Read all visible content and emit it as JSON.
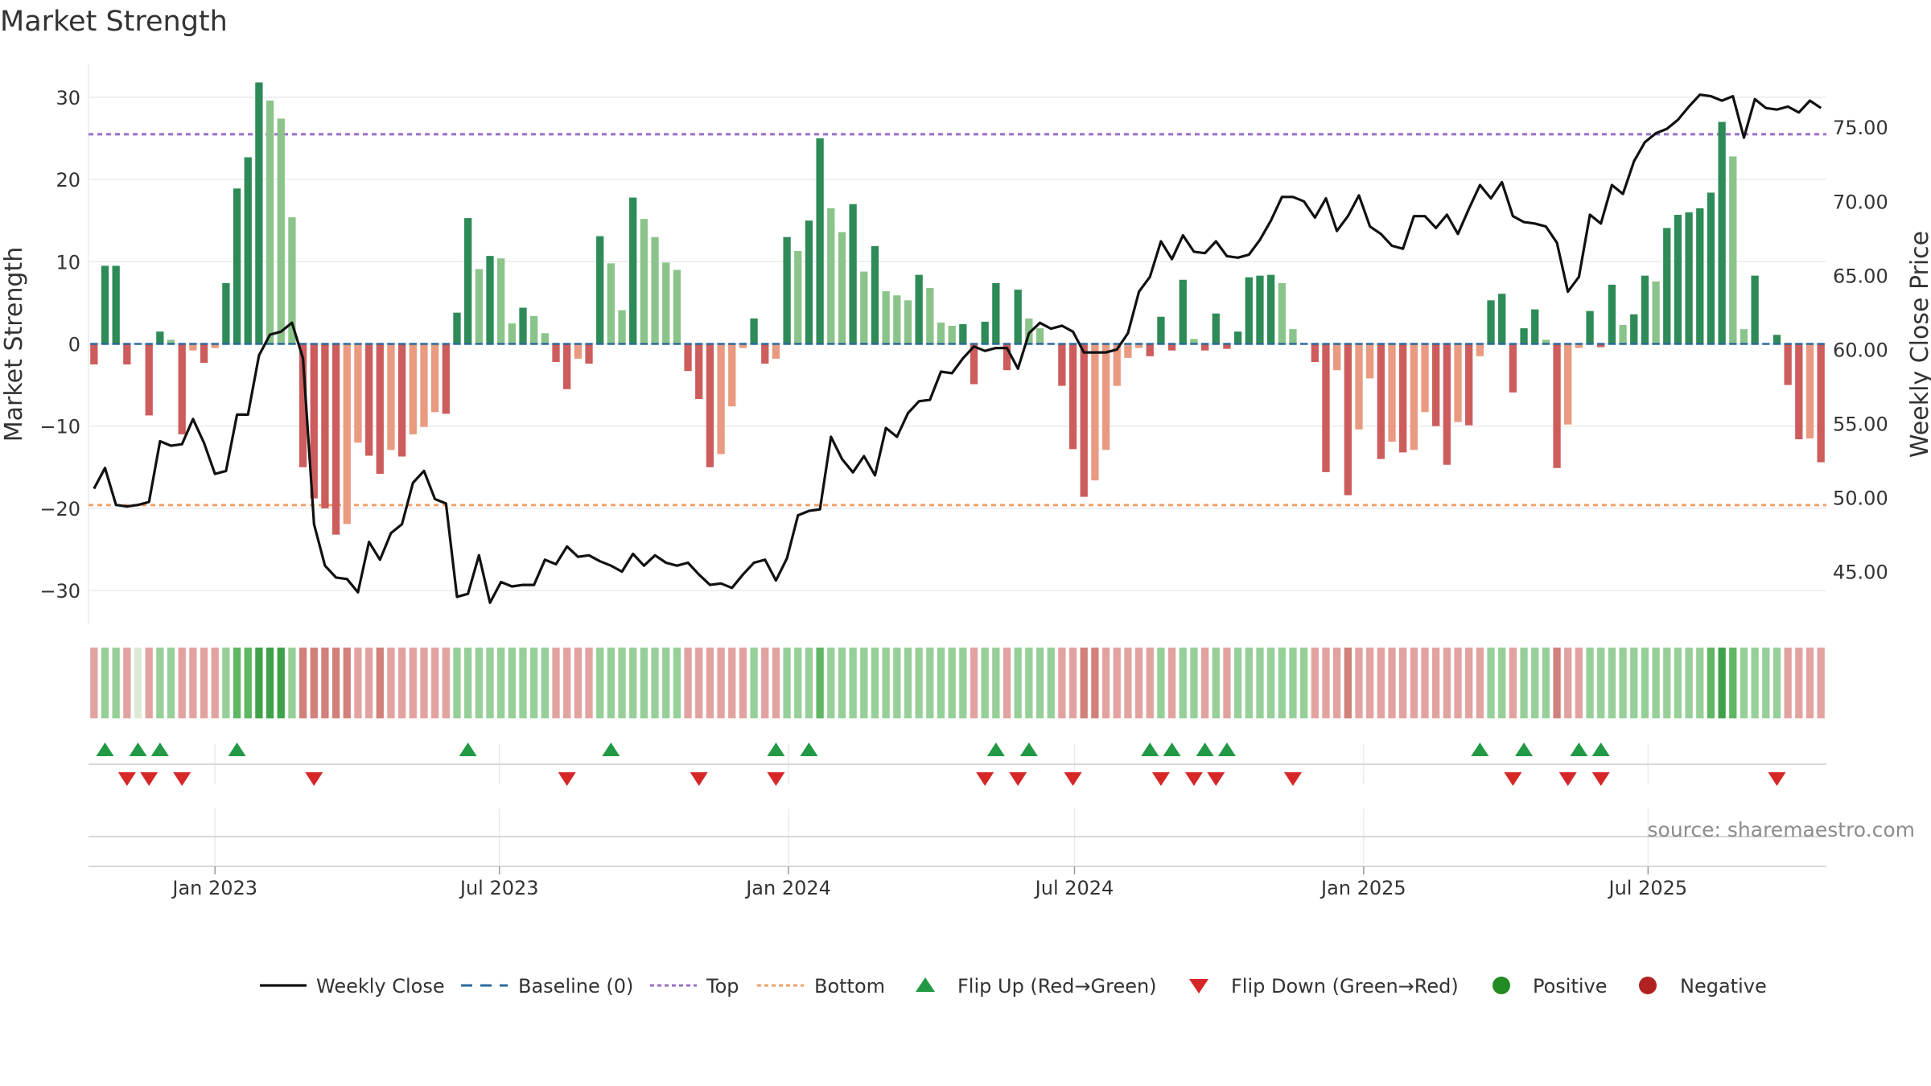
{
  "chart_data": {
    "type": "bar",
    "title": "Market Strength",
    "ylabel": "Market Strength",
    "y2label": "Weekly Close Price",
    "ylim": [
      -34,
      34
    ],
    "y2lim": [
      41.5,
      79.25
    ],
    "yticks": [
      30,
      20,
      10,
      0,
      -10,
      -20,
      -30
    ],
    "yticklabels": [
      "30",
      "20",
      "10",
      "0",
      "−10",
      "−20",
      "−30"
    ],
    "y2ticks": [
      75,
      70,
      65,
      60,
      55,
      50,
      45
    ],
    "y2ticklabels": [
      "75.00",
      "70.00",
      "65.00",
      "60.00",
      "55.00",
      "50.00",
      "45.00"
    ],
    "x_dates": [
      "2023-01-01",
      "2023-07-01",
      "2024-01-01",
      "2024-07-01",
      "2025-01-01",
      "2025-07-01"
    ],
    "x_ticklabels": [
      "Jan 2023",
      "Jul 2023",
      "Jan 2024",
      "Jul 2024",
      "Jan 2025",
      "Jul 2025"
    ],
    "start_date": "2022-10-16",
    "top_line": 25.5,
    "bottom_line": -19.6,
    "baseline": 0,
    "strength": [
      -2.5,
      9.5,
      9.5,
      -2.5,
      0,
      -8.7,
      1.5,
      0.5,
      -11,
      -0.8,
      -2.3,
      -0.5,
      7.4,
      18.9,
      22.7,
      31.8,
      29.6,
      27.4,
      15.4,
      -15,
      -18.8,
      -20,
      -23.2,
      -21.9,
      -12,
      -13.6,
      -15.8,
      -12.9,
      -13.7,
      -11,
      -10.1,
      -8.3,
      -8.5,
      3.8,
      15.3,
      9.1,
      10.7,
      10.4,
      2.5,
      4.4,
      3.4,
      1.3,
      -2.2,
      -5.5,
      -1.8,
      -2.4,
      13.1,
      9.8,
      4.1,
      17.8,
      15.2,
      13,
      9.9,
      9,
      -3.3,
      -6.7,
      -15,
      -13.4,
      -7.6,
      -0.5,
      3.1,
      -2.4,
      -1.8,
      13,
      11.3,
      15,
      25,
      16.5,
      13.6,
      17,
      8.8,
      11.9,
      6.4,
      5.9,
      5.3,
      8.4,
      6.8,
      2.6,
      2.2,
      2.4,
      -4.9,
      2.7,
      7.4,
      -3.2,
      6.6,
      3.1,
      1.9,
      0,
      -5.1,
      -12.8,
      -18.6,
      -16.6,
      -12.9,
      -5.1,
      -1.7,
      -0.5,
      -1.5,
      3.3,
      -0.8,
      7.8,
      0.6,
      -0.8,
      3.7,
      -0.6,
      1.5,
      8.1,
      8.3,
      8.4,
      7.4,
      1.8,
      0,
      -2.2,
      -15.6,
      -3.2,
      -18.4,
      -10.4,
      -4.2,
      -14,
      -11.9,
      -13.2,
      -12.9,
      -8.3,
      -10,
      -14.7,
      -9.5,
      -9.9,
      -1.5,
      5.3,
      6.1,
      -5.9,
      1.9,
      4.2,
      0.5,
      -15.1,
      -9.8,
      -0.5,
      4,
      -0.4,
      7.2,
      2.3,
      3.6,
      8.3,
      7.6,
      14.1,
      15.7,
      16,
      16.5,
      18.4,
      27,
      22.8,
      1.8,
      8.3,
      0,
      1.1,
      -5,
      -11.6,
      -11.5,
      -14.4
    ],
    "price": [
      50.6,
      52,
      49.5,
      49.4,
      49.5,
      49.7,
      53.8,
      53.5,
      53.6,
      55.3,
      53.7,
      51.6,
      51.8,
      55.6,
      55.6,
      59.6,
      61,
      61.2,
      61.8,
      59.4,
      48.2,
      45.4,
      44.6,
      44.5,
      43.6,
      47,
      45.8,
      47.6,
      48.2,
      51,
      51.8,
      49.9,
      49.6,
      43.3,
      43.5,
      46.1,
      42.9,
      44.3,
      44,
      44.1,
      44.1,
      45.8,
      45.5,
      46.7,
      46,
      46.1,
      45.7,
      45.4,
      45,
      46.2,
      45.4,
      46.1,
      45.6,
      45.4,
      45.6,
      44.8,
      44.1,
      44.2,
      43.9,
      44.8,
      45.6,
      45.8,
      44.4,
      45.9,
      48.8,
      49.1,
      49.2,
      54.1,
      52.6,
      51.7,
      52.8,
      51.5,
      54.7,
      54.1,
      55.7,
      56.5,
      56.6,
      58.5,
      58.4,
      59.4,
      60.2,
      59.9,
      60.1,
      60.1,
      58.7,
      61.1,
      61.8,
      61.4,
      61.6,
      61.2,
      59.8,
      59.8,
      59.8,
      60,
      61.1,
      63.9,
      64.9,
      67.3,
      66.1,
      67.7,
      66.6,
      66.5,
      67.3,
      66.3,
      66.2,
      66.4,
      67.4,
      68.7,
      70.3,
      70.3,
      70,
      68.9,
      70.2,
      68,
      69,
      70.4,
      68.3,
      67.8,
      67,
      66.8,
      69,
      69,
      68.2,
      69.1,
      67.8,
      69.5,
      71.1,
      70.2,
      71.3,
      69,
      68.6,
      68.5,
      68.3,
      67.2,
      63.9,
      64.9,
      69.1,
      68.5,
      71.1,
      70.5,
      72.7,
      74,
      74.6,
      74.9,
      75.5,
      76.4,
      77.2,
      77.1,
      76.8,
      77.1,
      74.3,
      76.9,
      76.3,
      76.2,
      76.4,
      76,
      76.8,
      76.3
    ],
    "strip_intensity": [
      -1,
      1,
      1,
      -1,
      0,
      -1,
      1,
      1,
      -1,
      -1,
      -1,
      -1,
      1,
      2,
      2,
      3,
      3,
      3,
      1,
      -2,
      -2,
      -2,
      -2,
      -2,
      -1,
      -1,
      -2,
      -1,
      -1,
      -1,
      -1,
      -1,
      -1,
      1,
      1,
      1,
      1,
      1,
      1,
      1,
      1,
      1,
      -1,
      -1,
      -1,
      -1,
      1,
      1,
      1,
      1,
      1,
      1,
      1,
      1,
      -1,
      -1,
      -1,
      -1,
      -1,
      -1,
      1,
      -1,
      -1,
      1,
      1,
      1,
      2,
      1,
      1,
      1,
      1,
      1,
      1,
      1,
      1,
      1,
      1,
      1,
      1,
      1,
      -1,
      1,
      1,
      -1,
      1,
      1,
      1,
      1,
      -1,
      -1,
      -2,
      -2,
      -1,
      -1,
      -1,
      -1,
      -1,
      1,
      -1,
      1,
      1,
      -1,
      1,
      -1,
      1,
      1,
      1,
      1,
      1,
      1,
      1,
      -1,
      -1,
      -1,
      -2,
      -1,
      -1,
      -1,
      -1,
      -1,
      -1,
      -1,
      -1,
      -1,
      -1,
      -1,
      -1,
      1,
      1,
      -1,
      1,
      1,
      1,
      -2,
      -1,
      -1,
      1,
      1,
      1,
      1,
      1,
      1,
      1,
      1,
      1,
      1,
      1,
      2,
      3,
      2,
      1,
      1,
      1,
      1,
      -1,
      -1,
      -1,
      -1
    ],
    "flip_up_idx": [
      1,
      4,
      6,
      13,
      34,
      47,
      62,
      65,
      82,
      85,
      96,
      98,
      101,
      103,
      126,
      130,
      135,
      137
    ],
    "flip_down_idx": [
      3,
      5,
      8,
      20,
      43,
      55,
      62,
      81,
      84,
      89,
      97,
      100,
      102,
      109,
      129,
      134,
      137,
      153
    ],
    "series": [
      {
        "name": "Weekly Close",
        "color": "#111111"
      },
      {
        "name": "Baseline (0)",
        "color": "#2b6a9f"
      },
      {
        "name": "Top",
        "color": "#9a6fc8"
      },
      {
        "name": "Bottom",
        "color": "#f0a06a"
      },
      {
        "name": "Flip Up (Red→Green)",
        "color": "#229944"
      },
      {
        "name": "Flip Down (Green→Red)",
        "color": "#d62728"
      },
      {
        "name": "Positive",
        "color": "#228b22"
      },
      {
        "name": "Negative",
        "color": "#b22222"
      }
    ],
    "colors": {
      "pos_strong": "#2e8b57",
      "pos_weak": "#8bc48a",
      "neg_strong": "#cd5c5c",
      "neg_weak": "#e99a80",
      "grid": "#ebebeb",
      "axis": "#cccccc"
    },
    "legend_position": "bottom-center",
    "grid": true
  },
  "source_text": "source: sharemaestro.com"
}
